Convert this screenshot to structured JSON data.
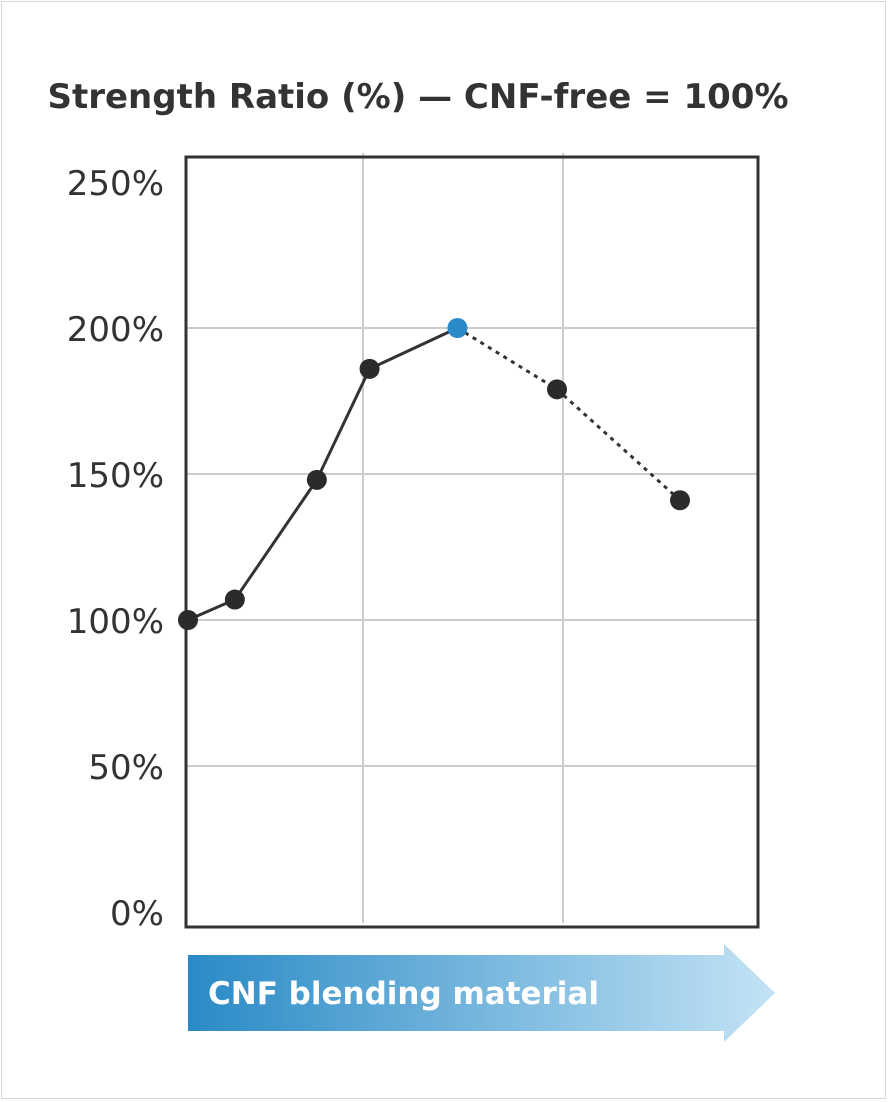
{
  "chart_data": {
    "type": "line",
    "title": "Strength Ratio (%) — CNF-free = 100%",
    "xlabel": "CNF blending material",
    "ylabel": "",
    "y_ticks": [
      "0%",
      "50%",
      "100%",
      "150%",
      "200%",
      "250%"
    ],
    "ylim": [
      0,
      250
    ],
    "grid": true,
    "x": [
      0,
      0.8,
      2.2,
      3.1,
      4.6,
      6.3,
      8.4
    ],
    "series": [
      {
        "values": [
          100,
          107,
          148,
          186,
          200,
          179,
          141
        ],
        "line_style": "solid",
        "dashed_from_index": 4
      }
    ],
    "highlight_index": 4,
    "colors": {
      "line": "#333333",
      "point": "#2b2b2b",
      "highlight": "#2a8ac6",
      "grid": "#cccccc",
      "axis": "#333333",
      "arrow_start": "#2a8ac6",
      "arrow_end": "#c3e3f5"
    }
  }
}
